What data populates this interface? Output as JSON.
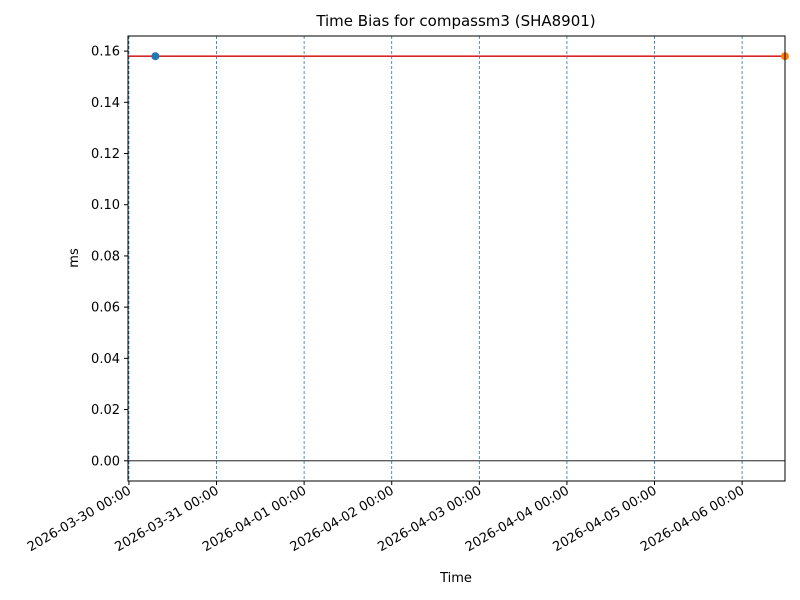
{
  "chart_data": {
    "type": "line",
    "title": "Time Bias for compassm3 (SHA8901)",
    "xlabel": "Time",
    "ylabel": "ms",
    "x_tick_labels": [
      "2026-03-30 00:00",
      "2026-03-31 00:00",
      "2026-04-01 00:00",
      "2026-04-02 00:00",
      "2026-04-03 00:00",
      "2026-04-04 00:00",
      "2026-04-05 00:00",
      "2026-04-06 00:00"
    ],
    "xlim": [
      "2026-03-29 23:45",
      "2026-04-06 11:45"
    ],
    "y_ticks": [
      0.0,
      0.02,
      0.04,
      0.06,
      0.08,
      0.1,
      0.12,
      0.14,
      0.16
    ],
    "y_tick_labels": [
      "0.00",
      "0.02",
      "0.04",
      "0.06",
      "0.08",
      "0.10",
      "0.12",
      "0.14",
      "0.16"
    ],
    "ylim": [
      -0.0079,
      0.1659
    ],
    "series": [
      {
        "type": "line",
        "color": "#d62728",
        "points": [
          [
            "2026-03-29 23:45",
            0.158
          ],
          [
            "2026-04-06 11:45",
            0.158
          ]
        ]
      },
      {
        "type": "scatter",
        "color": "#1f77b4",
        "points": [
          [
            "2026-03-30 07:15",
            0.158
          ]
        ]
      },
      {
        "type": "scatter",
        "color": "#ff7f0e",
        "points": [
          [
            "2026-04-06 11:45",
            0.158
          ]
        ]
      }
    ],
    "reference_line_y": 0.0,
    "vertical_gridlines": "dashed at each date tick",
    "grid_color": "#1f77b4"
  }
}
